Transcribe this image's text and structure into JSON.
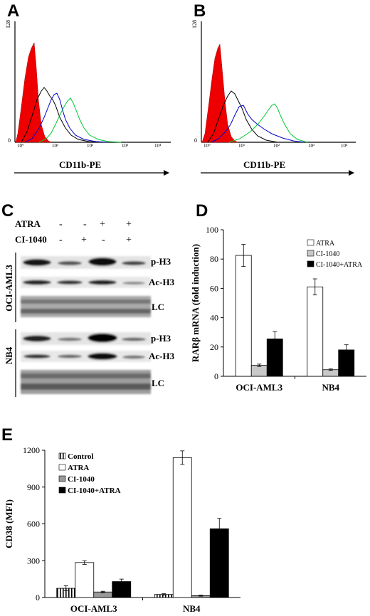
{
  "panels": {
    "a": "A",
    "b": "B",
    "c": "C",
    "d": "D",
    "e": "E"
  },
  "flow": {
    "xlabel": "CD11b-PE",
    "ymax_label": "128",
    "ymin_label": "0",
    "xticks": [
      "10°",
      "10¹",
      "10²",
      "10³",
      "10⁴"
    ]
  },
  "blot": {
    "treatments": [
      {
        "name": "ATRA",
        "signs": [
          "-",
          "-",
          "+",
          "+"
        ]
      },
      {
        "name": "CI-1040",
        "signs": [
          "-",
          "+",
          "-",
          "+"
        ]
      }
    ],
    "cell_lines": [
      "OCI-AML3",
      "NB4"
    ],
    "bands": [
      "p-H3",
      "Ac-H3",
      "LC"
    ]
  },
  "chart_data": [
    {
      "type": "bar",
      "panel": "D",
      "categories": [
        "OCI-AML3",
        "NB4"
      ],
      "ylabel": "RARβ mRNA (fold induction)",
      "ylim": [
        0,
        100
      ],
      "yticks": [
        0,
        20,
        40,
        60,
        80,
        100
      ],
      "series": [
        {
          "name": "ATRA",
          "color": "#ffffff",
          "values": [
            82.5,
            61
          ],
          "errors": [
            7.5,
            5.5
          ]
        },
        {
          "name": "CI-1040",
          "color": "#c8c8c8",
          "values": [
            7.5,
            4.5
          ],
          "errors": [
            0.8,
            0.5
          ]
        },
        {
          "name": "CI-1040+ATRA",
          "color": "#000000",
          "values": [
            25.5,
            18
          ],
          "errors": [
            5,
            3.5
          ]
        }
      ],
      "legend": "top-right"
    },
    {
      "type": "bar",
      "panel": "E",
      "categories": [
        "OCI-AML3",
        "NB4"
      ],
      "ylabel": "CD38 (MFI)",
      "ylim": [
        0,
        1200
      ],
      "yticks": [
        0,
        300,
        600,
        900,
        1200
      ],
      "series": [
        {
          "name": "Control",
          "color": "#ffffff",
          "pattern": "vertical-stripes",
          "values": [
            75,
            25
          ],
          "errors": [
            20,
            6
          ]
        },
        {
          "name": "ATRA",
          "color": "#ffffff",
          "values": [
            285,
            1140
          ],
          "errors": [
            15,
            55
          ]
        },
        {
          "name": "CI-1040",
          "color": "#999999",
          "values": [
            45,
            15
          ],
          "errors": [
            6,
            4
          ]
        },
        {
          "name": "CI-1040+ATRA",
          "color": "#000000",
          "values": [
            130,
            560
          ],
          "errors": [
            20,
            85
          ]
        }
      ],
      "legend": "top-left"
    }
  ]
}
